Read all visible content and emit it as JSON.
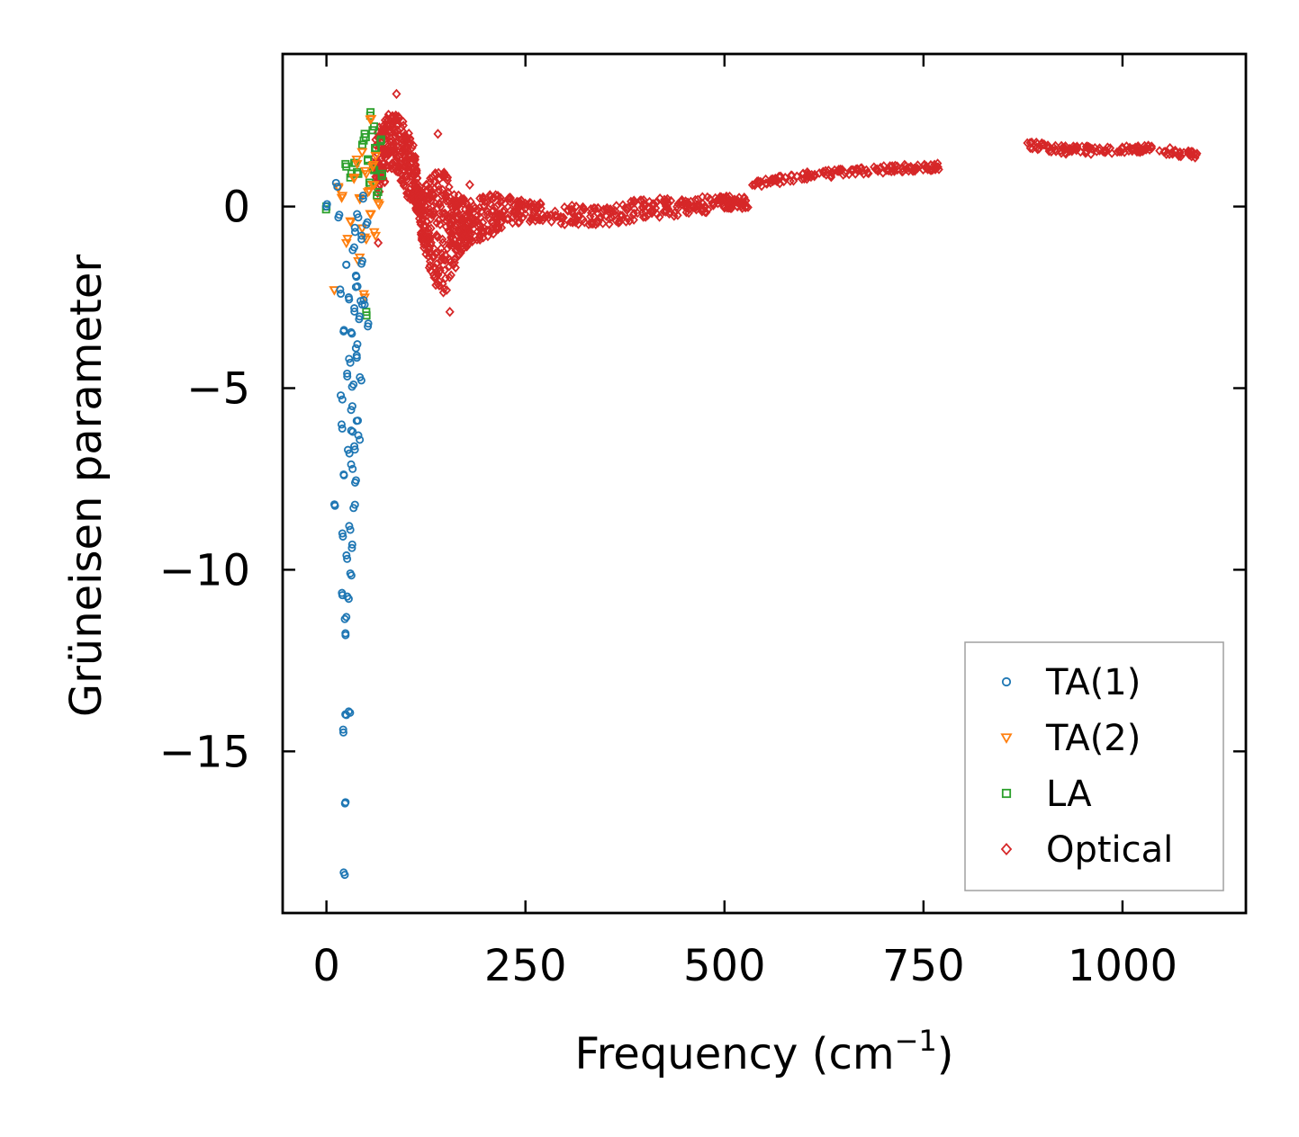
{
  "chart_data": {
    "type": "scatter",
    "title": "",
    "xlabel": "Frequency (cm",
    "xlabel_sup": "−1",
    "xlabel_close": ")",
    "ylabel": "Grüneisen parameter",
    "xlim": [
      -55,
      1155
    ],
    "ylim": [
      -19.45,
      4.2
    ],
    "xticks": [
      0,
      250,
      500,
      750,
      1000
    ],
    "xtick_labels": [
      "0",
      "250",
      "500",
      "750",
      "1000"
    ],
    "yticks": [
      0,
      -5,
      -10,
      -15
    ],
    "ytick_labels": [
      "0",
      "−5",
      "−10",
      "−15"
    ],
    "grid": false,
    "legend": "bottom-right",
    "series": [
      {
        "name": "TA(1)",
        "marker": "circle",
        "color": "#1f77b4",
        "x": [
          0,
          10,
          12,
          15,
          18,
          18,
          19,
          20,
          20,
          21,
          22,
          22,
          23,
          24,
          24,
          25,
          25,
          25,
          26,
          26,
          27,
          28,
          28,
          28,
          30,
          30,
          30,
          31,
          31,
          32,
          32,
          33,
          33,
          34,
          34,
          35,
          35,
          36,
          36,
          37,
          37,
          38,
          38,
          39,
          40,
          40,
          41,
          42,
          43,
          44,
          45,
          46,
          48,
          50,
          52
        ],
        "y": [
          0,
          -8.2,
          0.65,
          -0.3,
          -5.2,
          -2.4,
          -6.0,
          -9.0,
          -10.7,
          -14.4,
          -3.4,
          -7.4,
          -18.4,
          -16.4,
          -11.8,
          -1.6,
          -14.0,
          -11.3,
          -9.7,
          -4.6,
          -6.7,
          -13.9,
          -10.8,
          -2.5,
          -8.9,
          -10.1,
          -4.3,
          -5.6,
          -7.1,
          -3.5,
          -9.4,
          -6.2,
          -1.2,
          -8.3,
          -4.9,
          -2.8,
          -6.6,
          -0.7,
          -7.6,
          -3.9,
          -1.9,
          -5.9,
          -4.1,
          -2.2,
          -6.3,
          -0.3,
          -3.1,
          -4.7,
          -2.6,
          -0.9,
          -1.5,
          0.3,
          -2.7,
          -0.5,
          -3.3
        ]
      },
      {
        "name": "TA(2)",
        "marker": "triangle-down",
        "color": "#ff7f0e",
        "x": [
          10,
          15,
          20,
          25,
          30,
          35,
          38,
          40,
          42,
          45,
          45,
          48,
          50,
          50,
          52,
          55,
          55,
          58,
          60,
          60,
          62,
          65
        ],
        "y": [
          -2.3,
          0.5,
          0.3,
          -1.0,
          -0.4,
          0.8,
          1.3,
          -1.5,
          0.2,
          -0.6,
          1.5,
          -2.5,
          0.9,
          -0.9,
          0.4,
          2.4,
          -0.2,
          1.1,
          0.6,
          -0.7,
          1.4,
          0.1
        ]
      },
      {
        "name": "LA",
        "marker": "square",
        "color": "#2ca02c",
        "x": [
          0,
          25,
          30,
          35,
          40,
          45,
          48,
          50,
          52,
          55,
          55,
          58,
          60,
          62,
          65,
          68,
          70
        ],
        "y": [
          0,
          1.1,
          0.8,
          1.2,
          0.9,
          1.7,
          2.0,
          -2.9,
          1.3,
          2.5,
          0.6,
          2.1,
          1.0,
          1.6,
          0.4,
          1.8,
          0.9
        ]
      },
      {
        "name": "Optical",
        "marker": "diamond",
        "color": "#d62728",
        "points": [
          [
            88,
            3.1
          ],
          [
            140,
            2.0
          ],
          [
            155,
            -2.9
          ],
          [
            180,
            0.6
          ],
          [
            65,
            -1.0
          ]
        ],
        "band": {
          "x": [
            60,
            70,
            80,
            90,
            100,
            110,
            115,
            120,
            130,
            140,
            150,
            160,
            170,
            180,
            200,
            220,
            250,
            300,
            350,
            400,
            450,
            500,
            530
          ],
          "upper": [
            2.0,
            2.3,
            2.6,
            2.5,
            2.3,
            1.7,
            0.8,
            0.3,
            1.0,
            1.4,
            1.0,
            0.5,
            0.3,
            0.2,
            0.3,
            0.4,
            0.2,
            0.05,
            -0.05,
            0.3,
            0.2,
            0.35,
            0.25
          ],
          "lower": [
            0.2,
            0.5,
            1.0,
            0.9,
            0.3,
            0.0,
            -0.2,
            -1.0,
            -1.8,
            -2.3,
            -2.5,
            -1.8,
            -1.3,
            -1.0,
            -0.9,
            -0.6,
            -0.4,
            -0.5,
            -0.5,
            -0.35,
            -0.25,
            -0.1,
            -0.05
          ]
        },
        "clusters": [
          {
            "x": [
              535,
              600,
              660,
              720,
              770
            ],
            "y": [
              0.6,
              0.85,
              0.95,
              1.05,
              1.1
            ],
            "spread": 0.2
          },
          {
            "x": [
              880,
              930,
              980,
              1030,
              1095
            ],
            "y": [
              1.7,
              1.55,
              1.55,
              1.6,
              1.4
            ],
            "spread": 0.22
          }
        ]
      }
    ]
  }
}
